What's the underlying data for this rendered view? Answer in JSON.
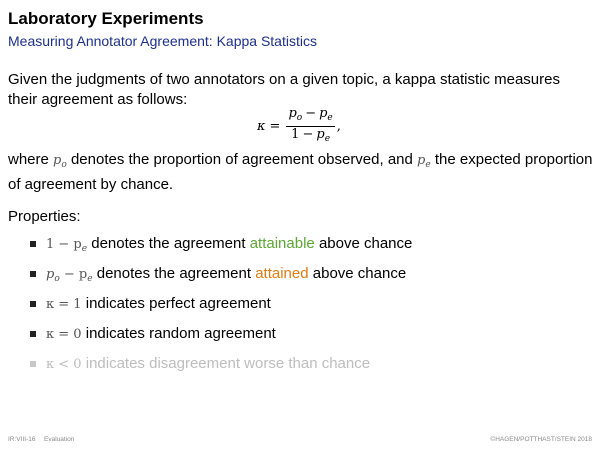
{
  "slide": {
    "title": "Laboratory Experiments",
    "subtitle": "Measuring Annotator Agreement: Kappa Statistics"
  },
  "body": {
    "intro": "Given the judgments of two annotators on a given topic, a kappa statistic measures their agreement as follows:",
    "formula": {
      "lhs": "κ",
      "eq": "=",
      "num_a": "p",
      "num_a_sub": "o",
      "num_op": "−",
      "num_b": "p",
      "num_b_sub": "e",
      "den_one": "1",
      "den_op": "−",
      "den_b": "p",
      "den_b_sub": "e",
      "trail": ","
    },
    "where_1": "where",
    "where_po": "p",
    "where_po_sub": "o",
    "where_2": "denotes the proportion of agreement observed, and",
    "where_pe": "p",
    "where_pe_sub": "e",
    "where_3": "the expected proportion of agreement by chance.",
    "properties_label": "Properties:"
  },
  "properties": [
    {
      "math": "1 − p",
      "math_sub": "e",
      "text_before": "denotes the agreement",
      "highlight": "attainable",
      "text_after": "above chance",
      "highlight_color": "#5aa832"
    },
    {
      "math": "p",
      "math_sub": "o",
      "math2": "− p",
      "math2_sub": "e",
      "text_before": "denotes the agreement",
      "highlight": "attained",
      "text_after": "above chance",
      "highlight_color": "#e07b12"
    },
    {
      "math": "κ = 1",
      "text": "indicates perfect agreement"
    },
    {
      "math": "κ = 0",
      "text": "indicates random agreement"
    },
    {
      "math": "κ < 0",
      "text": "indicates disagreement worse than chance",
      "faded": true
    }
  ],
  "footer": {
    "left": "IR:VIII-16",
    "left2": "Evaluation",
    "right": "©HAGEN/POTTHAST/STEIN 2018"
  }
}
